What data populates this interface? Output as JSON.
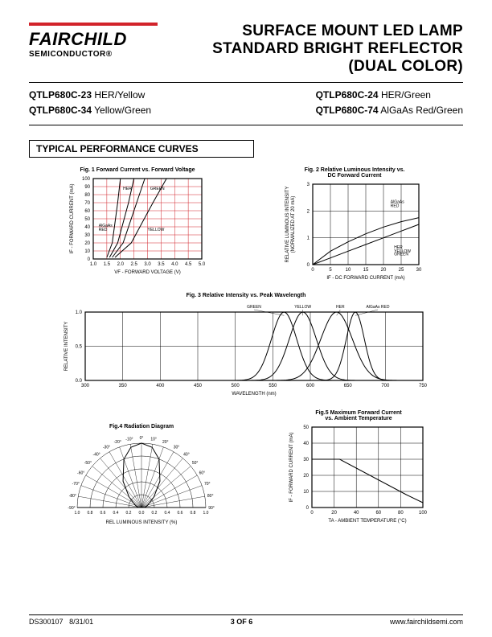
{
  "logo": {
    "brand": "FAIRCHILD",
    "sub": "SEMICONDUCTOR®",
    "bar_color": "#d2232a"
  },
  "title": {
    "l1": "SURFACE MOUNT LED LAMP",
    "l2": "STANDARD BRIGHT REFLECTOR",
    "l3": "(DUAL COLOR)"
  },
  "products": {
    "left": [
      {
        "pn": "QTLP680C-23",
        "desc": "HER/Yellow"
      },
      {
        "pn": "QTLP680C-34",
        "desc": "Yellow/Green"
      }
    ],
    "right": [
      {
        "pn": "QTLP680C-24",
        "desc": "HER/Green"
      },
      {
        "pn": "QTLP680C-74",
        "desc": "AlGaAs Red/Green"
      }
    ]
  },
  "section": "TYPICAL PERFORMANCE CURVES",
  "fig1": {
    "title": "Fig. 1  Forward Current vs. Forward Voltage",
    "xlabel": "VF - FORWARD VOLTAGE (V)",
    "ylabel": "IF - FORWARD CURRENT (mA)",
    "xlim": [
      1.0,
      5.0
    ],
    "ylim": [
      0,
      100
    ],
    "xtick_step": 0.5,
    "ytick_step": 10,
    "grid_color": "#d2232a",
    "curve_color": "#000000",
    "curves": {
      "AlGaAs_RED": [
        [
          1.5,
          2
        ],
        [
          1.7,
          20
        ],
        [
          1.9,
          70
        ],
        [
          2.0,
          100
        ]
      ],
      "HER": [
        [
          1.6,
          2
        ],
        [
          1.9,
          20
        ],
        [
          2.3,
          70
        ],
        [
          2.5,
          100
        ]
      ],
      "YELLOW": [
        [
          1.7,
          2
        ],
        [
          2.1,
          20
        ],
        [
          2.6,
          70
        ],
        [
          2.9,
          100
        ]
      ],
      "GREEN": [
        [
          1.8,
          2
        ],
        [
          2.4,
          20
        ],
        [
          3.2,
          70
        ],
        [
          3.7,
          100
        ]
      ]
    },
    "annot": [
      [
        "AlGaAs",
        "RED",
        1.2,
        40
      ],
      [
        "HER",
        "",
        2.1,
        86
      ],
      [
        "GREEN",
        "",
        3.1,
        86
      ],
      [
        "YELLOW",
        "",
        3.0,
        35
      ]
    ]
  },
  "fig2": {
    "title": "Fig. 2  Relative Luminous Intensity vs.\nDC Forward Current",
    "xlabel": "IF - DC FORWARD CURRENT (mA)",
    "ylabel": "RELATIVE LUMINOUS INTENSITY\n(NORMALIZED AT 20 mA)",
    "xlim": [
      0,
      30
    ],
    "ylim": [
      0,
      3
    ],
    "xtick_step": 5,
    "ytick_step": 1,
    "curves": {
      "AlGaAs_RED": [
        [
          0,
          0
        ],
        [
          5,
          0.5
        ],
        [
          10,
          0.85
        ],
        [
          15,
          1.15
        ],
        [
          20,
          1.4
        ],
        [
          25,
          1.6
        ],
        [
          30,
          1.75
        ]
      ],
      "OTHERS": [
        [
          0,
          0
        ],
        [
          5,
          0.25
        ],
        [
          10,
          0.5
        ],
        [
          15,
          0.75
        ],
        [
          20,
          1.0
        ],
        [
          25,
          1.25
        ],
        [
          30,
          1.5
        ]
      ]
    },
    "annot": [
      [
        "AlGaAs",
        "RED",
        22,
        2.3
      ],
      [
        "HER",
        "YELLOW",
        23,
        0.6
      ],
      [
        "GREEN",
        "",
        23,
        0.35
      ]
    ]
  },
  "fig3": {
    "title": "Fig. 3  Relative Intensity vs. Peak Wavelength",
    "xlabel": "WAVELENGTH (nm)",
    "ylabel": "RELATIVE INTENSITY",
    "xlim": [
      300,
      750
    ],
    "ylim": [
      0,
      1.0
    ],
    "xtick_step": 50,
    "ytick_step": 0.5,
    "peaks": {
      "GREEN": 565,
      "YELLOW": 590,
      "HER": 635,
      "AlGaAs_RED": 660
    },
    "hw": {
      "GREEN": 28,
      "YELLOW": 30,
      "HER": 35,
      "AlGaAs_RED": 20
    }
  },
  "fig4": {
    "title": "Fig.4  Radiation Diagram",
    "xlabel": "REL LUMINOUS INTENSITY (%)",
    "angles": [
      -90,
      -80,
      -70,
      -60,
      -50,
      -40,
      -30,
      -20,
      -10,
      0,
      10,
      20,
      30,
      40,
      50,
      60,
      70,
      80,
      90
    ],
    "radii": [
      0,
      0.2,
      0.4,
      0.6,
      0.8,
      1.0
    ],
    "curve": [
      [
        -90,
        0.05
      ],
      [
        -70,
        0.1
      ],
      [
        -50,
        0.25
      ],
      [
        -35,
        0.5
      ],
      [
        -20,
        0.8
      ],
      [
        -10,
        0.95
      ],
      [
        0,
        1.0
      ],
      [
        10,
        0.95
      ],
      [
        20,
        0.8
      ],
      [
        35,
        0.5
      ],
      [
        50,
        0.25
      ],
      [
        70,
        0.1
      ],
      [
        90,
        0.05
      ]
    ]
  },
  "fig5": {
    "title": "Fig.5  Maximum Forward Current\nvs. Ambient Temperature",
    "xlabel": "TA - AMBIENT TEMPERATURE (°C)",
    "ylabel": "IF - FORWARD CURRENT (mA)",
    "xlim": [
      0,
      100
    ],
    "ylim": [
      0,
      50
    ],
    "xtick_step": 20,
    "ytick_step": 10,
    "curve": [
      [
        0,
        30
      ],
      [
        25,
        30
      ],
      [
        85,
        8
      ],
      [
        100,
        3
      ]
    ]
  },
  "footer": {
    "doc": "DS300107",
    "date": "8/31/01",
    "page": "3 OF 6",
    "url": "www.fairchildsemi.com"
  }
}
